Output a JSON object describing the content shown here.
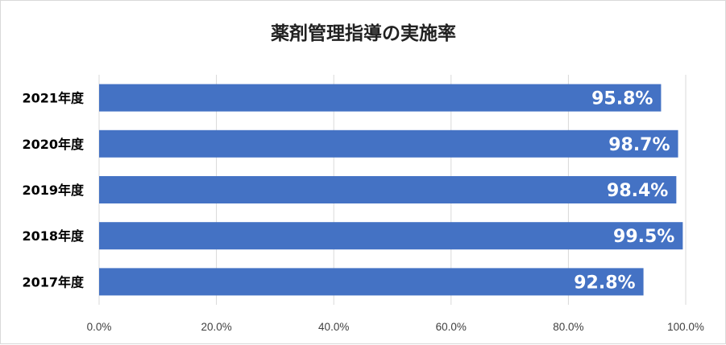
{
  "chart_data": {
    "type": "bar",
    "orientation": "horizontal",
    "title": "薬剤管理指導の実施率",
    "categories": [
      "2021年度",
      "2020年度",
      "2019年度",
      "2018年度",
      "2017年度"
    ],
    "values": [
      95.8,
      98.7,
      98.4,
      99.5,
      92.8
    ],
    "data_labels": [
      "95.8%",
      "98.7%",
      "98.4%",
      "99.5%",
      "92.8%"
    ],
    "x_ticks": [
      "0.0%",
      "20.0%",
      "40.0%",
      "60.0%",
      "80.0%",
      "100.0%"
    ],
    "xlim": [
      0,
      100
    ],
    "grid": true,
    "legend": "none",
    "colors": {
      "bar": "#4472C4",
      "grid": "#d9d9d9",
      "label": "#ffffff"
    }
  }
}
